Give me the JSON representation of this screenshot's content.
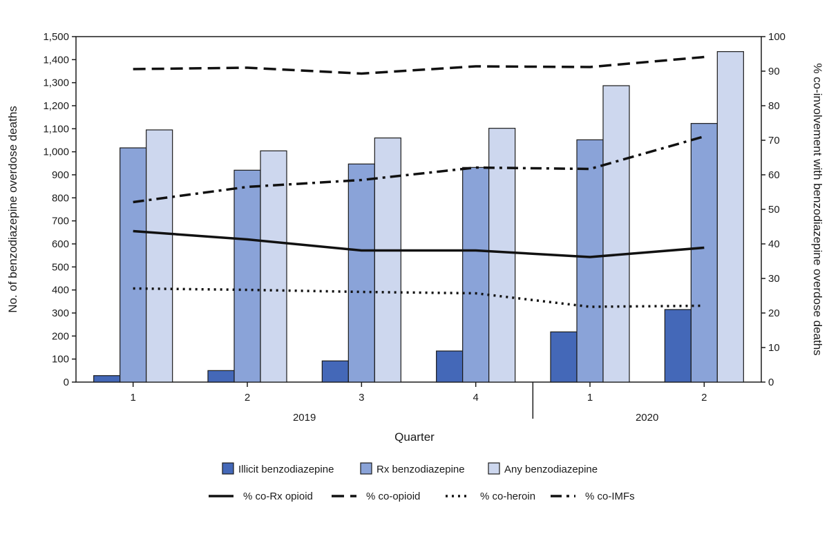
{
  "chart_data": {
    "type": "bar",
    "xlabel": "Quarter",
    "ylabel": "No. of benzodiazepine overdose deaths",
    "y2label": "% co-involvement with benzodiazepine overdose deaths",
    "categories": [
      "1",
      "2",
      "3",
      "4",
      "1",
      "2"
    ],
    "years": [
      {
        "label": "2019",
        "start": 0,
        "end": 3
      },
      {
        "label": "2020",
        "start": 4,
        "end": 5
      }
    ],
    "ylim": [
      0,
      1500
    ],
    "yticks": [
      0,
      100,
      200,
      300,
      400,
      500,
      600,
      700,
      800,
      900,
      1000,
      1100,
      1200,
      1300,
      1400,
      1500
    ],
    "ytick_labels": [
      "0",
      "100",
      "200",
      "300",
      "400",
      "500",
      "600",
      "700",
      "800",
      "900",
      "1,000",
      "1,100",
      "1,200",
      "1,300",
      "1,400",
      "1,500"
    ],
    "y2lim": [
      0,
      100
    ],
    "y2ticks": [
      0,
      10,
      20,
      30,
      40,
      50,
      60,
      70,
      80,
      90,
      100
    ],
    "grid": false,
    "legend_position": "bottom",
    "bar_series": [
      {
        "name": "Illicit benzodiazepine",
        "color": "#4468b8",
        "values": [
          28,
          50,
          92,
          135,
          218,
          315
        ]
      },
      {
        "name": "Rx benzodiazepine",
        "color": "#8aa3d8",
        "values": [
          1017,
          920,
          947,
          932,
          1052,
          1123
        ]
      },
      {
        "name": "Any benzodiazepine",
        "color": "#cdd7ee",
        "values": [
          1095,
          1004,
          1060,
          1102,
          1287,
          1435
        ]
      }
    ],
    "line_series": [
      {
        "name": "% co-Rx opioid",
        "style": "solid",
        "values": [
          43.7,
          41.3,
          38.1,
          38.1,
          36.2,
          38.9
        ]
      },
      {
        "name": "% co-opioid",
        "style": "dash",
        "values": [
          90.6,
          91.0,
          89.3,
          91.4,
          91.2,
          94.1
        ]
      },
      {
        "name": "% co-heroin",
        "style": "dot",
        "values": [
          27.1,
          26.7,
          26.1,
          25.7,
          21.8,
          22.1
        ]
      },
      {
        "name": "% co-IMFs",
        "style": "dashdot",
        "values": [
          52.1,
          56.5,
          58.5,
          62.1,
          61.7,
          71.1
        ]
      }
    ]
  }
}
